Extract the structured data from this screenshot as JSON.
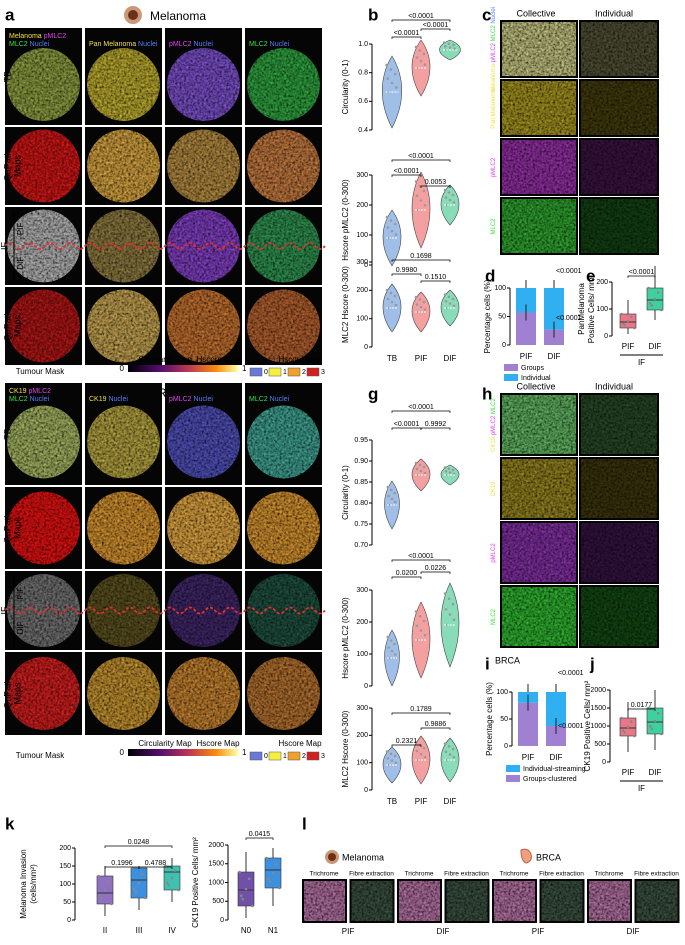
{
  "a": {
    "label": "a",
    "title": "Melanoma",
    "column_headers": [
      [
        [
          {
            "text": "Melanoma",
            "color": "#f0e040"
          },
          {
            "text": "pMLC2",
            "color": "#e040f0"
          }
        ],
        [
          {
            "text": "MLC2",
            "color": "#40e040"
          },
          {
            "text": "Nuclei",
            "color": "#5080ff"
          }
        ]
      ],
      [
        [
          {
            "text": "Pan Melanoma",
            "color": "#f0e040"
          },
          {
            "text": "Nuclei",
            "color": "#5080ff"
          }
        ]
      ],
      [
        [
          {
            "text": "pMLC2",
            "color": "#e040f0"
          },
          {
            "text": "Nuclei",
            "color": "#5080ff"
          }
        ]
      ],
      [
        [
          {
            "text": "MLC2",
            "color": "#40e040"
          },
          {
            "text": "Nuclei",
            "color": "#5080ff"
          }
        ]
      ]
    ],
    "row_labels": [
      [
        "TB"
      ],
      [
        "QuPath",
        "Maps"
      ],
      [
        "IF"
      ],
      [
        "QuPath",
        "Maps"
      ]
    ],
    "if_zones": [
      "PIF",
      "DIF"
    ],
    "tumour_mask": "Tumour Mask",
    "circularity_map": {
      "title": "Circularity Map",
      "ticks": [
        0,
        1
      ]
    },
    "hscore_map": {
      "titles": [
        "Hscore Map",
        "Hscore Map"
      ],
      "levels": [
        0,
        1,
        2,
        3
      ]
    }
  },
  "b": {
    "label": "b",
    "categories": [
      "TB",
      "PIF",
      "DIF"
    ],
    "plots": [
      {
        "ylabel": "Circularity (0-1)",
        "yticks": [
          0.4,
          0.6,
          0.8,
          {
            "value": 1,
            "label": "1.0"
          }
        ],
        "pvalues": [
          "<0.0001",
          "<0.0001",
          "<0.0001"
        ]
      },
      {
        "ylabel": "Hscore pMLC2 (0-300)",
        "yticks": [
          0,
          100,
          200,
          300
        ],
        "pvalues": [
          "<0.0001",
          "<0.0001",
          "0.0053"
        ]
      },
      {
        "ylabel": "MLC2 Hscore (0-300)",
        "yticks": [
          0,
          100,
          200,
          300
        ],
        "pvalues": [
          "0.1698",
          "0.9980",
          "0.1510"
        ]
      }
    ]
  },
  "c": {
    "label": "c",
    "columns": [
      "Collective",
      "Individual"
    ],
    "row_labels": [
      [
        {
          "text": "Melanoma",
          "color": "#f0e040"
        },
        {
          "text": "pMLC2",
          "color": "#e040f0"
        },
        {
          "text": "MLC2",
          "color": "#40e040"
        },
        {
          "text": "Nuclei",
          "color": "#5080ff"
        }
      ],
      [
        {
          "text": "Pan Melanoma",
          "color": "#f0e040"
        }
      ],
      [
        {
          "text": "pMLC2",
          "color": "#e040f0"
        }
      ],
      [
        {
          "text": "MLC2",
          "color": "#40e040"
        }
      ]
    ]
  },
  "d": {
    "label": "d",
    "ylabel": "Percentage cells (%)",
    "yticks": [
      0,
      50,
      100
    ],
    "categories": [
      "PIF",
      "DIF"
    ],
    "pvalues": [
      "<0.0001",
      "<0.0001"
    ],
    "legend": [
      {
        "text": "Groups",
        "color": "#a080d0"
      },
      {
        "text": "Individual",
        "color": "#30b0f0"
      }
    ]
  },
  "e": {
    "label": "e",
    "ylabel": [
      "PanMelanoma",
      "Positive Cells/ mm²"
    ],
    "yticks": [
      0,
      100,
      200
    ],
    "categories": [
      "PIF",
      "DIF"
    ],
    "group": "IF",
    "pvalues": [
      "<0.0001"
    ]
  },
  "f": {
    "label": "f",
    "title": "BRCA",
    "column_headers": [
      [
        [
          {
            "text": "CK19",
            "color": "#f0e040"
          },
          {
            "text": "pMLC2",
            "color": "#e040f0"
          }
        ],
        [
          {
            "text": "MLC2",
            "color": "#40e040"
          },
          {
            "text": "Nuclei",
            "color": "#5080ff"
          }
        ]
      ],
      [
        [
          {
            "text": "CK19",
            "color": "#f0e040"
          },
          {
            "text": "Nuclei",
            "color": "#5080ff"
          }
        ]
      ],
      [
        [
          {
            "text": "pMLC2",
            "color": "#e040f0"
          },
          {
            "text": "Nuclei",
            "color": "#5080ff"
          }
        ]
      ],
      [
        [
          {
            "text": "MLC2",
            "color": "#40e040"
          },
          {
            "text": "Nuclei",
            "color": "#5080ff"
          }
        ]
      ]
    ],
    "row_labels": [
      [
        "TB"
      ],
      [
        "QuPath",
        "Maps"
      ],
      [
        "IF"
      ],
      [
        "QuPath",
        "Maps"
      ]
    ],
    "if_zones": [
      "PIF",
      "DIF"
    ],
    "tumour_mask": "Tumour Mask",
    "circularity_map": {
      "title": "Circularity Map",
      "ticks": [
        0,
        1
      ]
    },
    "hscore_map": {
      "titles": [
        "Hscore Map",
        "Hscore Map"
      ],
      "levels": [
        0,
        1,
        2,
        3
      ]
    }
  },
  "g": {
    "label": "g",
    "categories": [
      "TB",
      "PIF",
      "DIF"
    ],
    "plots": [
      {
        "ylabel": "Circularity (0-1)",
        "yticks": [
          {
            "value": 0.7,
            "label": "0.70"
          },
          {
            "value": 0.75,
            "label": "0.75"
          },
          {
            "value": 0.8,
            "label": "0.80"
          },
          {
            "value": 0.85,
            "label": "0.85"
          },
          {
            "value": 0.9,
            "label": "0.90"
          },
          {
            "value": 0.95,
            "label": "0.95"
          }
        ],
        "pvalues": [
          "<0.0001",
          "<0.0001",
          "0.9992"
        ]
      },
      {
        "ylabel": "Hscore pMLC2 (0-300)",
        "yticks": [
          0,
          100,
          200,
          300
        ],
        "pvalues": [
          "<0.0001",
          "0.0200",
          "0.0226"
        ]
      },
      {
        "ylabel": "MLC2 Hscore (0-300)",
        "yticks": [
          0,
          100,
          200,
          300
        ],
        "pvalues": [
          "0.1789",
          "0.2321",
          "0.9886"
        ]
      }
    ]
  },
  "h": {
    "label": "h",
    "columns": [
      "Collective",
      "Individual"
    ],
    "row_labels": [
      [
        {
          "text": "CK19",
          "color": "#f0e040"
        },
        {
          "text": "pMLC2",
          "color": "#e040f0"
        },
        {
          "text": "MLC2",
          "color": "#40e040"
        }
      ],
      [
        {
          "text": "CK19",
          "color": "#f0e040"
        }
      ],
      [
        {
          "text": "pMLC2",
          "color": "#e040f0"
        }
      ],
      [
        {
          "text": "MLC2",
          "color": "#40e040"
        }
      ]
    ]
  },
  "i": {
    "label": "i",
    "title": "BRCA",
    "ylabel": "Percentage cells (%)",
    "yticks": [
      0,
      50,
      100
    ],
    "categories": [
      "PIF",
      "DIF"
    ],
    "pvalues": [
      "<0.0001",
      "<0.0001"
    ],
    "legend": [
      {
        "text": "Individual-streaming",
        "color": "#30b0f0"
      },
      {
        "text": "Groups-clustered",
        "color": "#a080d0"
      }
    ]
  },
  "j": {
    "label": "j",
    "ylabel": "CK19 Positive Cells/ mm²",
    "yticks": [
      0,
      500,
      1000,
      1500,
      2000
    ],
    "categories": [
      "PIF",
      "DIF"
    ],
    "group": "IF",
    "pvalues": [
      "0.0177"
    ]
  },
  "k": {
    "label": "k",
    "left": {
      "ylabel": [
        "Melanoma Invasion",
        "(cells/mm²)"
      ],
      "yticks": [
        0,
        50,
        100,
        150,
        200
      ],
      "categories": [
        "II",
        "III",
        "IV"
      ],
      "pvalues": [
        "0.0248",
        "0.1996",
        "0.4788"
      ]
    },
    "right": {
      "ylabel": "CK19 Positive Cells/ mm²",
      "yticks": [
        0,
        500,
        1000,
        1500,
        2000
      ],
      "categories": [
        "N0",
        "N1"
      ],
      "pvalues": [
        "0.0415"
      ]
    }
  },
  "l": {
    "label": "l",
    "titles": [
      "Melanoma",
      "BRCA"
    ],
    "image_labels": [
      "Trichrome",
      "Fibre extraction",
      "Trichrome",
      "Fibre extraction",
      "Trichrome",
      "Fibre extraction",
      "Trichrome",
      "Fibre extraction"
    ],
    "zones": [
      "PIF",
      "DIF",
      "PIF",
      "DIF"
    ]
  }
}
